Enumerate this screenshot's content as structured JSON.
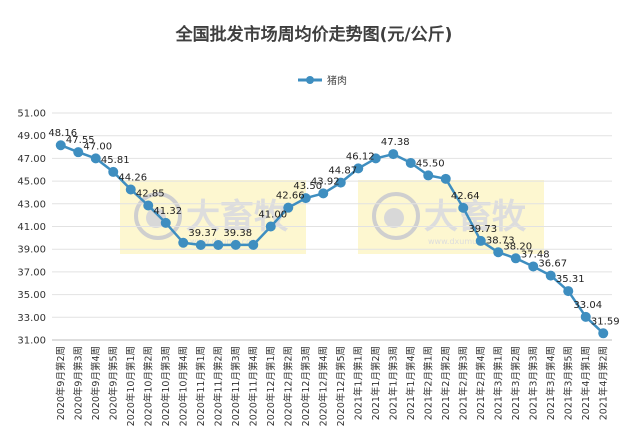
{
  "chart_data": {
    "type": "line",
    "title": "全国批发市场周均价走势图(元/公斤)",
    "legend_position": "top",
    "ylim": [
      31,
      51
    ],
    "yticks": [
      "31.00",
      "33.00",
      "35.00",
      "37.00",
      "39.00",
      "41.00",
      "43.00",
      "45.00",
      "47.00",
      "49.00",
      "51.00"
    ],
    "grid": true,
    "categories": [
      "2020年9月第2周",
      "2020年9月第3周",
      "2020年9月第4周",
      "2020年9月第5周",
      "2020年10月第1周",
      "2020年10月第2周",
      "2020年10月第3周",
      "2020年10月第4周",
      "2020年11月第1周",
      "2020年11月第2周",
      "2020年11月第3周",
      "2020年11月第4周",
      "2020年12月第1周",
      "2020年12月第2周",
      "2020年12月第3周",
      "2020年12月第4周",
      "2020年12月第5周",
      "2021年1月第1周",
      "2021年1月第2周",
      "2021年1月第3周",
      "2021年1月第4周",
      "2021年2月第1周",
      "2021年2月第2周",
      "2021年2月第3周",
      "2021年2月第4周",
      "2021年3月第1周",
      "2021年3月第2周",
      "2021年3月第3周",
      "2021年3月第4周",
      "2021年3月第5周",
      "2021年4月第1周",
      "2021年4月第2周"
    ],
    "series": [
      {
        "name": "猪肉",
        "color": "#3e8ec0",
        "values": [
          48.16,
          47.55,
          47.0,
          45.81,
          44.26,
          42.85,
          41.32,
          39.57,
          39.37,
          39.37,
          39.38,
          39.38,
          41.0,
          42.66,
          43.5,
          43.92,
          44.87,
          46.12,
          47.0,
          47.38,
          46.6,
          45.5,
          45.2,
          42.64,
          39.73,
          38.73,
          38.2,
          37.48,
          36.67,
          35.31,
          33.04,
          31.59
        ],
        "labels": [
          "48.16",
          "47.55",
          "47.00",
          "45.81",
          "44.26",
          "42.85",
          "41.32",
          "",
          "39.37",
          "",
          "39.38",
          "",
          "41.00",
          "42.66",
          "43.50",
          "43.92",
          "44.87",
          "46.12",
          "",
          "47.38",
          "",
          "45.50",
          "",
          "42.64",
          "39.73",
          "38.73",
          "38.20",
          "37.48",
          "36.67",
          "35.31",
          "33.04",
          "31.59"
        ]
      }
    ],
    "watermark": {
      "text": "大畜牧",
      "subtext": "www.dxumu.com"
    }
  }
}
